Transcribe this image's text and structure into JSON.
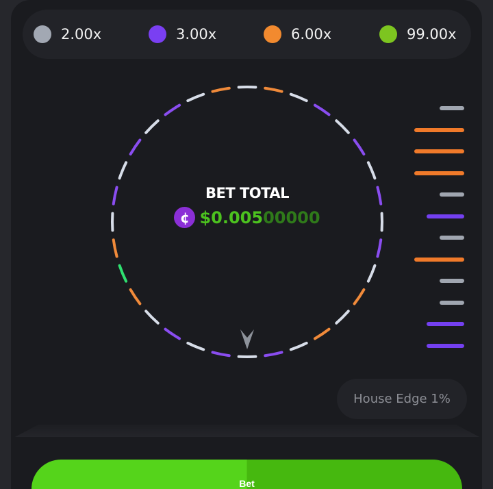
{
  "legend": [
    {
      "label": "2.00x",
      "color": "#a2a8b3"
    },
    {
      "label": "3.00x",
      "color": "#7a3ff2"
    },
    {
      "label": "6.00x",
      "color": "#f28a2f"
    },
    {
      "label": "99.00x",
      "color": "#7dc520"
    }
  ],
  "wheel": {
    "segments": [
      "white",
      "orange",
      "white",
      "purple",
      "white",
      "purple",
      "white",
      "purple",
      "white",
      "purple",
      "white",
      "orange",
      "white",
      "orange",
      "white",
      "purple",
      "white",
      "purple",
      "white",
      "purple",
      "white",
      "orange",
      "green",
      "orange",
      "white",
      "purple",
      "white",
      "purple",
      "white",
      "purple",
      "white",
      "orange"
    ],
    "colors": {
      "white": "#d7dde8",
      "purple": "#8a4df0",
      "orange": "#f08a3a",
      "green": "#2fe070"
    },
    "pointer_icon": "arrow-pointer"
  },
  "bet_total": {
    "title": "BET TOTAL",
    "currency_icon": "cent-coin",
    "amount_main": "$0.005",
    "amount_dim": "00000"
  },
  "history": [
    "gray",
    "orange",
    "orange",
    "orange",
    "gray",
    "purple",
    "gray",
    "orange",
    "gray",
    "gray",
    "purple",
    "purple"
  ],
  "history_colors": {
    "gray": "#a0a6b0",
    "orange": "#f07a2a",
    "purple": "#7440f0"
  },
  "house_edge": "House Edge 1%",
  "bet_button": "Bet"
}
